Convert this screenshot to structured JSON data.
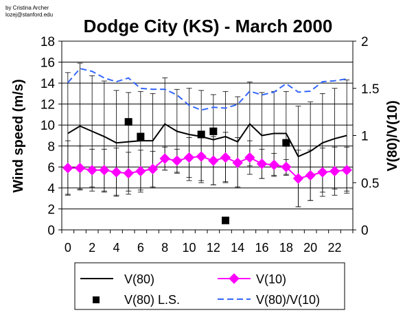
{
  "credit": [
    "by Cristina Archer",
    "lozej@stanford.edu"
  ],
  "chart_data": {
    "type": "line",
    "title": "Dodge City (KS) - March 2000",
    "xlabel": "",
    "ylabel": "Wind speed (m/s)",
    "y2label": "V(80)/V(10)",
    "x": [
      0,
      1,
      2,
      3,
      4,
      5,
      6,
      7,
      8,
      9,
      10,
      11,
      12,
      13,
      14,
      15,
      16,
      17,
      18,
      19,
      20,
      21,
      22,
      23
    ],
    "xticks": [
      "0",
      "2",
      "4",
      "6",
      "8",
      "10",
      "12",
      "14",
      "16",
      "18",
      "20",
      "22"
    ],
    "ylim": [
      0,
      18
    ],
    "yticks": [
      "0",
      "2",
      "4",
      "6",
      "8",
      "10",
      "12",
      "14",
      "16",
      "18"
    ],
    "y2lim": [
      0,
      2
    ],
    "y2ticks": [
      "0",
      "0.5",
      "1",
      "1.5",
      "2"
    ],
    "grid": "horizontal",
    "legend_position": "bottom",
    "series": [
      {
        "name": "V(80)",
        "axis": "left",
        "style": "solid-line",
        "color": "#000000",
        "values": [
          9.2,
          9.9,
          9.4,
          8.9,
          8.3,
          8.4,
          8.5,
          8.5,
          10.1,
          9.4,
          9.1,
          8.9,
          8.6,
          8.9,
          8.4,
          10.1,
          9.0,
          9.2,
          9.2,
          7.0,
          7.5,
          8.3,
          8.7,
          9.0
        ],
        "error": [
          5.8,
          6.0,
          5.3,
          5.3,
          5.0,
          4.7,
          4.7,
          4.5,
          4.4,
          4.0,
          4.4,
          4.4,
          4.3,
          4.3,
          4.3,
          4.0,
          4.1,
          4.0,
          4.0,
          4.8,
          4.7,
          4.7,
          4.8,
          5.3
        ]
      },
      {
        "name": "V(10)",
        "axis": "left",
        "style": "line-diamond",
        "color": "#ff00ff",
        "values": [
          5.9,
          5.9,
          5.7,
          5.7,
          5.5,
          5.4,
          5.6,
          5.8,
          6.8,
          6.6,
          6.9,
          7.0,
          6.6,
          6.9,
          6.4,
          6.9,
          6.3,
          6.2,
          6.0,
          4.9,
          5.2,
          5.5,
          5.6,
          5.7
        ],
        "error": [
          2.6,
          2.1,
          2.0,
          2.0,
          2.3,
          2.0,
          2.0,
          1.7,
          1.1,
          1.1,
          1.9,
          2.3,
          2.3,
          2.4,
          2.4,
          1.6,
          1.4,
          1.1,
          0.7,
          2.7,
          2.4,
          2.3,
          2.3,
          2.2
        ]
      },
      {
        "name": "V(80) L.S.",
        "axis": "left",
        "style": "square-markers",
        "color": "#000000",
        "x": [
          5,
          6,
          11,
          12,
          13,
          18
        ],
        "values": [
          10.3,
          8.9,
          9.1,
          9.4,
          0.9,
          8.3
        ]
      },
      {
        "name": "V(80)/V(10)",
        "axis": "right",
        "style": "dashed-line",
        "color": "#3366ff",
        "values": [
          1.56,
          1.71,
          1.68,
          1.61,
          1.57,
          1.61,
          1.5,
          1.49,
          1.49,
          1.43,
          1.32,
          1.27,
          1.3,
          1.29,
          1.33,
          1.47,
          1.43,
          1.46,
          1.55,
          1.46,
          1.47,
          1.57,
          1.58,
          1.6
        ]
      }
    ]
  }
}
